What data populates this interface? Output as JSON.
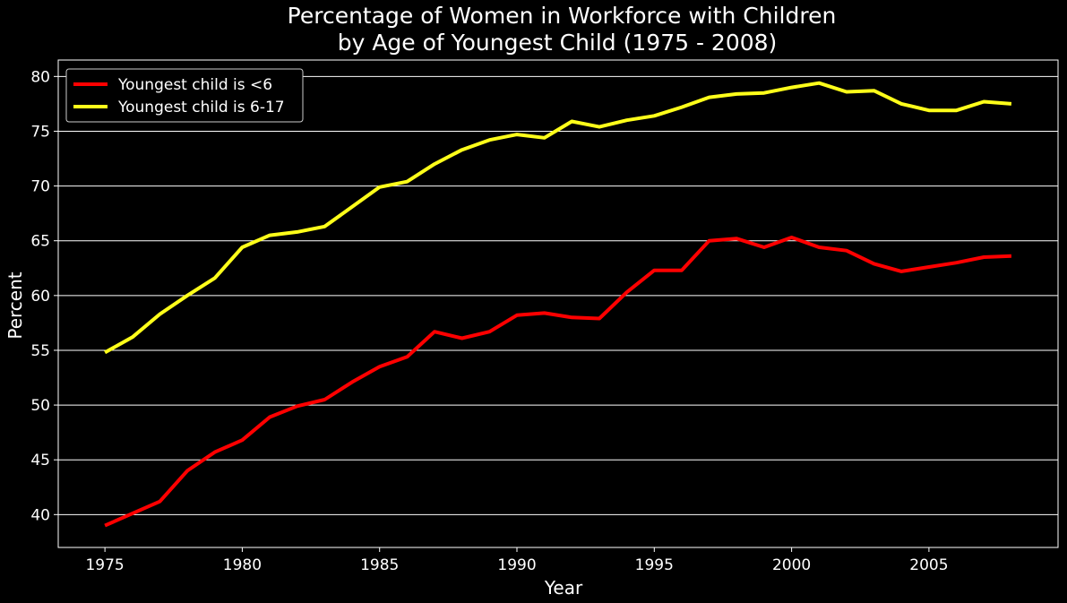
{
  "chart_data": {
    "type": "line",
    "title": [
      "Percentage of Women in Workforce with Children",
      "by Age of Youngest Child (1975 - 2008)"
    ],
    "xlabel": "Year",
    "ylabel": "Percent",
    "xlim": [
      1973.3,
      2009.7
    ],
    "ylim": [
      37,
      81.5
    ],
    "x_ticks": [
      1975,
      1980,
      1985,
      1990,
      1995,
      2000,
      2005
    ],
    "y_ticks": [
      40,
      45,
      50,
      55,
      60,
      65,
      70,
      75,
      80
    ],
    "grid": "horizontal",
    "legend_position": "top-left",
    "background": "#000000",
    "x": [
      1975,
      1976,
      1977,
      1978,
      1979,
      1980,
      1981,
      1982,
      1983,
      1984,
      1985,
      1986,
      1987,
      1988,
      1989,
      1990,
      1991,
      1992,
      1993,
      1994,
      1995,
      1996,
      1997,
      1998,
      1999,
      2000,
      2001,
      2002,
      2003,
      2004,
      2005,
      2006,
      2007,
      2008
    ],
    "series": [
      {
        "name": "Youngest child is <6",
        "color": "#ff0000",
        "values": [
          39.0,
          40.1,
          41.2,
          44.0,
          45.7,
          46.8,
          48.9,
          49.9,
          50.5,
          52.1,
          53.5,
          54.4,
          56.7,
          56.1,
          56.7,
          58.2,
          58.4,
          58.0,
          57.9,
          60.3,
          62.3,
          62.3,
          65.0,
          65.2,
          64.4,
          65.3,
          64.4,
          64.1,
          62.9,
          62.2,
          62.6,
          63.0,
          63.5,
          63.6
        ]
      },
      {
        "name": "Youngest child is 6-17",
        "color": "#ffff1a",
        "values": [
          54.8,
          56.2,
          58.3,
          60.0,
          61.6,
          64.4,
          65.5,
          65.8,
          66.3,
          68.1,
          69.9,
          70.4,
          72.0,
          73.3,
          74.2,
          74.7,
          74.4,
          75.9,
          75.4,
          76.0,
          76.4,
          77.2,
          78.1,
          78.4,
          78.5,
          79.0,
          79.4,
          78.6,
          78.7,
          77.5,
          76.9,
          76.9,
          77.7,
          77.5
        ]
      }
    ]
  }
}
